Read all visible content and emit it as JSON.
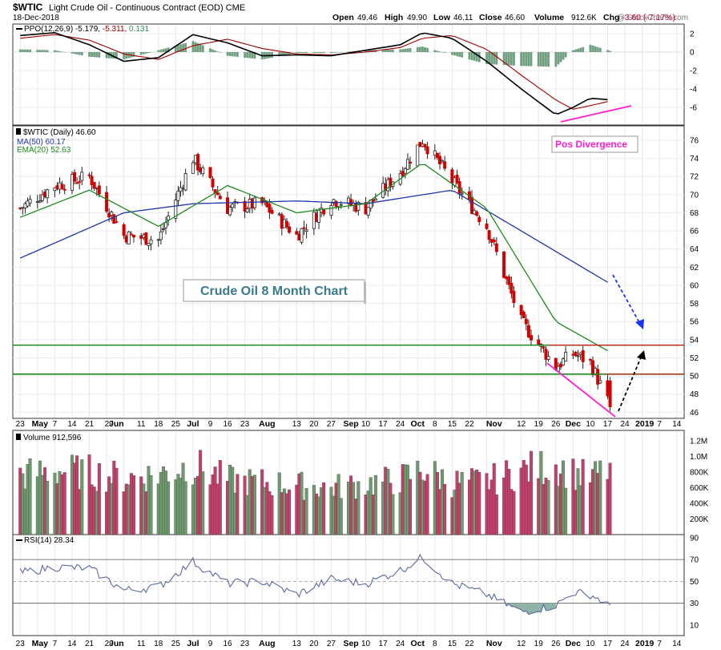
{
  "header": {
    "symbol": "$WTIC",
    "name": "Light Crude Oil - Continuous Contract (EOD)",
    "exchange": "CME",
    "date": "18-Dec-2018",
    "watermark": "@ StockCharts.com",
    "open_label": "Open",
    "open": "49.46",
    "high_label": "High",
    "high": "49.90",
    "low_label": "Low",
    "low": "46.11",
    "close_label": "Close",
    "close": "46.60",
    "volume_label": "Volume",
    "volume": "912.6K",
    "chg_label": "Chg",
    "chg": "-3.60 (-7.17%)"
  },
  "ppo_panel": {
    "label": "PPO(12,26,9)",
    "value1": "-5.179,",
    "value2": "-5.311,",
    "value3": "0.131",
    "yticks": [
      2,
      0,
      -2,
      -4,
      -6
    ]
  },
  "price_panel": {
    "label": "$WTIC (Daily) 46.60",
    "ma_label": "MA(50) 60.17",
    "ema_label": "EMA(20) 52.63",
    "yticks": [
      46,
      48,
      50,
      52,
      54,
      56,
      58,
      60,
      62,
      64,
      66,
      68,
      70,
      72,
      74,
      76
    ],
    "annotation_title": "Crude Oil 8 Month Chart",
    "annotation_divergence": "Pos Divergence"
  },
  "volume_panel": {
    "label": "Volume 912,596",
    "yticks": [
      "1.2M",
      "1.0M",
      "800K",
      "600K",
      "400K",
      "200K"
    ]
  },
  "rsi_panel": {
    "label": "RSI(14) 28.34",
    "yticks": [
      90,
      70,
      50,
      30,
      10
    ]
  },
  "xaxis_labels": [
    "23",
    "May",
    "7",
    "14",
    "21",
    "29",
    "Jun",
    "11",
    "18",
    "25",
    "Jul",
    "9",
    "16",
    "23",
    "Aug",
    "13",
    "20",
    "27",
    "Sep",
    "10",
    "17",
    "24",
    "Oct",
    "8",
    "15",
    "22",
    "Nov",
    "12",
    "19",
    "26",
    "Dec",
    "10",
    "17",
    "24",
    "2019",
    "7",
    "14"
  ],
  "colors": {
    "up_candle": "#4f8a4f",
    "down_candle": "#d40000",
    "vol_up": "#6e9a6e",
    "vol_down": "#c4406a",
    "ppo_line": "#000000",
    "ppo_signal": "#a00000",
    "ppo_hist": "#6f9f7f",
    "ma50": "#1f35a8",
    "ema20": "#1d8a1d",
    "support": "#1a8a1a",
    "resistance": "#e01a1a",
    "divergence": "#ff1fd0",
    "arrow_blue": "#1a33ff",
    "rsi_line": "#5a6aa0"
  },
  "chart_data": [
    {
      "type": "line",
      "title": "PPO(12,26,9)",
      "series": [
        {
          "name": "PPO(12,26,9)",
          "x": [
            "2018-04-23",
            "2018-05-07",
            "2018-05-21",
            "2018-06-04",
            "2018-06-18",
            "2018-07-02",
            "2018-07-16",
            "2018-07-30",
            "2018-08-13",
            "2018-08-27",
            "2018-09-10",
            "2018-09-24",
            "2018-10-03",
            "2018-10-15",
            "2018-10-29",
            "2018-11-12",
            "2018-11-26",
            "2018-12-03",
            "2018-12-10",
            "2018-12-18"
          ],
          "values": [
            1.8,
            2.1,
            0.8,
            -1.0,
            -0.6,
            1.9,
            1.0,
            -0.4,
            -0.3,
            -0.4,
            0.2,
            0.8,
            2.1,
            1.5,
            -1.0,
            -4.0,
            -6.8,
            -6.0,
            -5.0,
            -5.18
          ]
        },
        {
          "name": "Signal",
          "x": [
            "2018-04-23",
            "2018-05-07",
            "2018-05-21",
            "2018-06-04",
            "2018-06-18",
            "2018-07-02",
            "2018-07-16",
            "2018-07-30",
            "2018-08-13",
            "2018-08-27",
            "2018-09-10",
            "2018-09-24",
            "2018-10-03",
            "2018-10-15",
            "2018-10-29",
            "2018-11-12",
            "2018-11-26",
            "2018-12-03",
            "2018-12-10",
            "2018-12-18"
          ],
          "values": [
            1.5,
            1.9,
            1.3,
            -0.2,
            -0.8,
            0.7,
            1.4,
            0.4,
            -0.2,
            -0.3,
            0.0,
            0.5,
            1.5,
            1.8,
            0.3,
            -2.5,
            -5.2,
            -6.2,
            -5.8,
            -5.31
          ]
        }
      ],
      "ylim": [
        -7,
        3
      ]
    },
    {
      "type": "line",
      "title": "$WTIC (Daily) 46.60",
      "series": [
        {
          "name": "$WTIC",
          "x": [
            "2018-04-23",
            "2018-05-07",
            "2018-05-21",
            "2018-06-04",
            "2018-06-18",
            "2018-07-02",
            "2018-07-16",
            "2018-07-30",
            "2018-08-13",
            "2018-08-27",
            "2018-09-10",
            "2018-09-24",
            "2018-10-03",
            "2018-10-15",
            "2018-10-29",
            "2018-11-12",
            "2018-11-26",
            "2018-12-03",
            "2018-12-10",
            "2018-12-18"
          ],
          "values": [
            68.5,
            71.0,
            72.0,
            65.5,
            65.0,
            74.0,
            68.5,
            69.0,
            65.5,
            69.5,
            68.5,
            72.5,
            76.0,
            71.5,
            66.5,
            56.0,
            51.0,
            52.5,
            51.5,
            46.6
          ]
        },
        {
          "name": "MA(50)",
          "x": [
            "2018-04-23",
            "2018-06-04",
            "2018-07-02",
            "2018-08-13",
            "2018-09-10",
            "2018-10-15",
            "2018-11-12",
            "2018-12-18"
          ],
          "values": [
            63.0,
            68.0,
            69.0,
            69.3,
            69.0,
            70.5,
            66.0,
            60.17
          ]
        },
        {
          "name": "EMA(20)",
          "x": [
            "2018-04-23",
            "2018-05-21",
            "2018-06-18",
            "2018-07-16",
            "2018-08-13",
            "2018-09-10",
            "2018-10-03",
            "2018-10-29",
            "2018-11-26",
            "2018-12-18"
          ],
          "values": [
            67.5,
            70.5,
            66.5,
            71.0,
            68.0,
            69.0,
            73.5,
            68.5,
            56.0,
            52.63
          ]
        }
      ],
      "ylim": [
        45.5,
        77.5
      ]
    },
    {
      "type": "bar",
      "title": "Volume 912,596",
      "categories": [
        "2018-04-23",
        "2018-05-07",
        "2018-05-21",
        "2018-06-04",
        "2018-06-18",
        "2018-07-02",
        "2018-07-16",
        "2018-07-30",
        "2018-08-13",
        "2018-08-27",
        "2018-09-10",
        "2018-09-24",
        "2018-10-03",
        "2018-10-15",
        "2018-10-29",
        "2018-11-12",
        "2018-11-26",
        "2018-12-03",
        "2018-12-10",
        "2018-12-18"
      ],
      "values": [
        820000,
        880000,
        860000,
        780000,
        830000,
        960000,
        750000,
        720000,
        680000,
        650000,
        700000,
        760000,
        900000,
        720000,
        730000,
        880000,
        960000,
        850000,
        780000,
        912596
      ],
      "ylim": [
        0,
        1300000
      ]
    },
    {
      "type": "line",
      "title": "RSI(14) 28.34",
      "series": [
        {
          "name": "RSI(14)",
          "x": [
            "2018-04-23",
            "2018-05-07",
            "2018-05-21",
            "2018-06-04",
            "2018-06-18",
            "2018-07-02",
            "2018-07-16",
            "2018-07-30",
            "2018-08-13",
            "2018-08-27",
            "2018-09-10",
            "2018-09-24",
            "2018-10-03",
            "2018-10-15",
            "2018-10-29",
            "2018-11-12",
            "2018-11-26",
            "2018-12-03",
            "2018-12-10",
            "2018-12-18"
          ],
          "values": [
            58,
            63,
            62,
            42,
            45,
            68,
            48,
            50,
            38,
            52,
            48,
            60,
            72,
            48,
            38,
            22,
            28,
            40,
            38,
            28.34
          ]
        }
      ],
      "ylim": [
        0,
        100
      ]
    }
  ]
}
